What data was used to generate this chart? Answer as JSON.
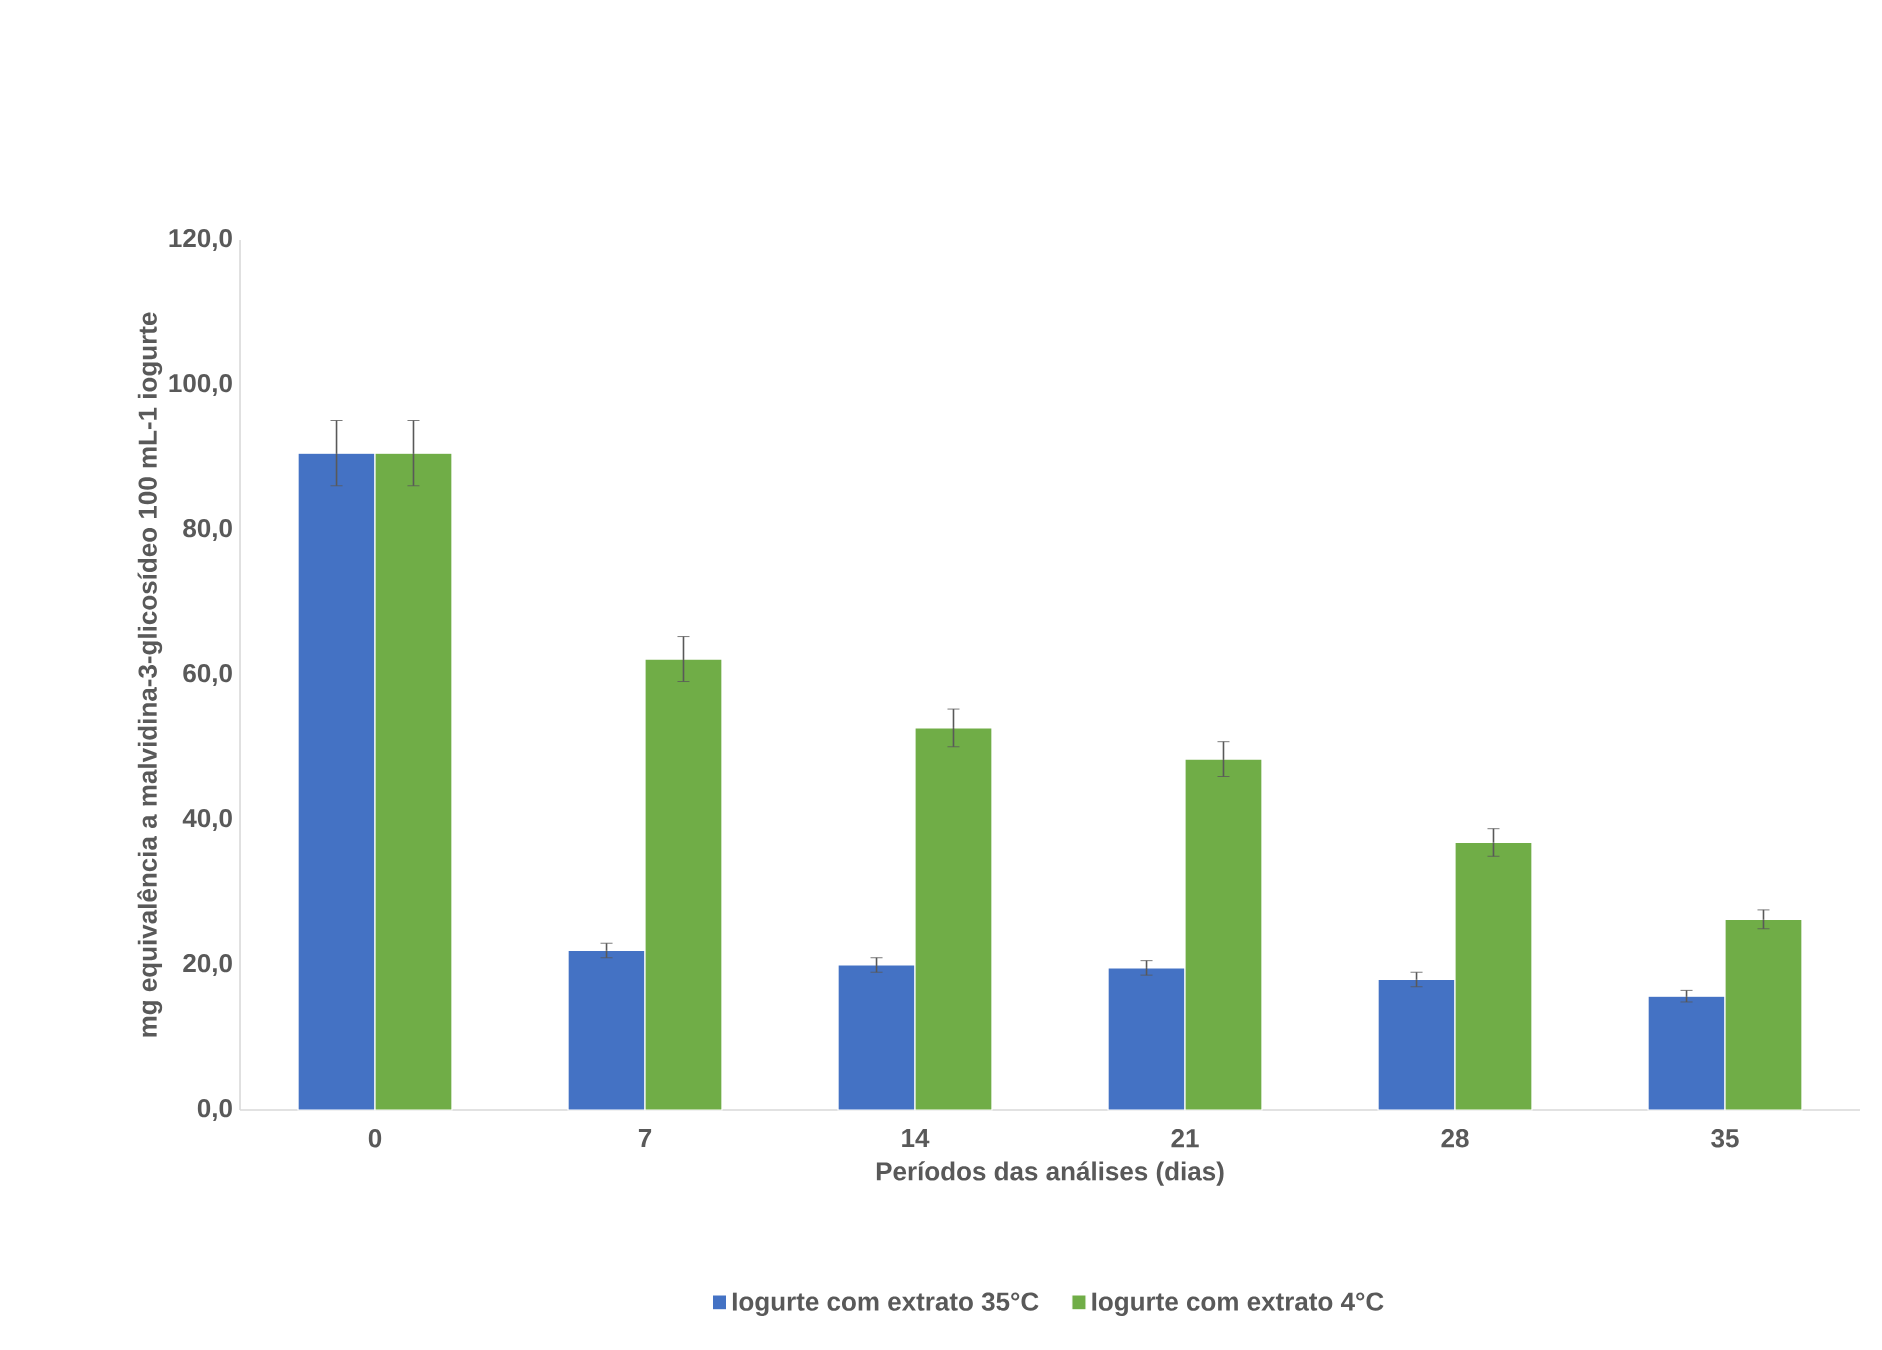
{
  "chart_data": {
    "type": "bar",
    "xlabel": "Períodos das análises (dias)",
    "ylabel": "mg equivalência a malvidina-3-glicosídeo 100 mL-1 iogurte",
    "categories": [
      "0",
      "7",
      "14",
      "21",
      "28",
      "35"
    ],
    "series": [
      {
        "name": "Iogurte com extrato 35°C",
        "color": "#4472c4",
        "values": [
          90.6,
          22.0,
          20.0,
          19.6,
          18.0,
          15.7
        ],
        "errors": [
          4.5,
          1.0,
          1.0,
          1.0,
          1.0,
          0.8
        ]
      },
      {
        "name": "Iogurte com extrato 4°C",
        "color": "#70ad47",
        "values": [
          90.6,
          62.2,
          52.7,
          48.4,
          36.9,
          26.3
        ],
        "errors": [
          4.5,
          3.1,
          2.6,
          2.4,
          1.9,
          1.3
        ]
      }
    ],
    "ylim": [
      0,
      120
    ],
    "yticks": [
      {
        "value": 0,
        "label": "0,0"
      },
      {
        "value": 20,
        "label": "20,0"
      },
      {
        "value": 40,
        "label": "40,0"
      },
      {
        "value": 60,
        "label": "60,0"
      },
      {
        "value": 80,
        "label": "80,0"
      },
      {
        "value": 100,
        "label": "100,0"
      },
      {
        "value": 120,
        "label": "120,0"
      }
    ],
    "grid": false,
    "legend": "bottom"
  }
}
